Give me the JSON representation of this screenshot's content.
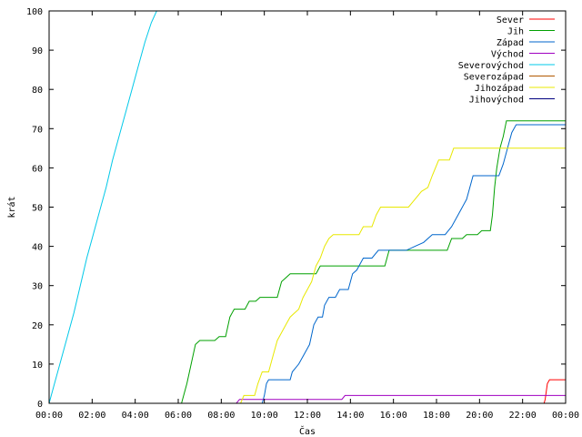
{
  "chart_data": {
    "type": "line",
    "title": "",
    "xlabel": "Čas",
    "ylabel": "krát",
    "xlim": [
      0,
      24
    ],
    "ylim": [
      0,
      100
    ],
    "grid": false,
    "legend_position": "top-right",
    "x_ticks": [
      {
        "value": 0,
        "label": "00:00"
      },
      {
        "value": 2,
        "label": "02:00"
      },
      {
        "value": 4,
        "label": "04:00"
      },
      {
        "value": 6,
        "label": "06:00"
      },
      {
        "value": 8,
        "label": "08:00"
      },
      {
        "value": 10,
        "label": "10:00"
      },
      {
        "value": 12,
        "label": "12:00"
      },
      {
        "value": 14,
        "label": "14:00"
      },
      {
        "value": 16,
        "label": "16:00"
      },
      {
        "value": 18,
        "label": "18:00"
      },
      {
        "value": 20,
        "label": "20:00"
      },
      {
        "value": 22,
        "label": "22:00"
      },
      {
        "value": 24,
        "label": "00:00"
      }
    ],
    "y_ticks": [
      {
        "value": 0,
        "label": "0"
      },
      {
        "value": 10,
        "label": "10"
      },
      {
        "value": 20,
        "label": "20"
      },
      {
        "value": 30,
        "label": "30"
      },
      {
        "value": 40,
        "label": "40"
      },
      {
        "value": 50,
        "label": "50"
      },
      {
        "value": 60,
        "label": "60"
      },
      {
        "value": 70,
        "label": "70"
      },
      {
        "value": 80,
        "label": "80"
      },
      {
        "value": 90,
        "label": "90"
      },
      {
        "value": 100,
        "label": "100"
      }
    ],
    "series": [
      {
        "name": "Sever",
        "color": "#ff0000",
        "points": [
          [
            0,
            0
          ],
          [
            23.0,
            0
          ],
          [
            23.05,
            1
          ],
          [
            23.15,
            5
          ],
          [
            23.25,
            6
          ],
          [
            24,
            6
          ]
        ]
      },
      {
        "name": "Jih",
        "color": "#00a000",
        "points": [
          [
            0,
            0
          ],
          [
            6.15,
            0
          ],
          [
            6.4,
            5
          ],
          [
            6.6,
            10
          ],
          [
            6.8,
            15
          ],
          [
            7.0,
            16
          ],
          [
            7.7,
            16
          ],
          [
            7.9,
            17
          ],
          [
            8.2,
            17
          ],
          [
            8.4,
            22
          ],
          [
            8.6,
            24
          ],
          [
            9.1,
            24
          ],
          [
            9.3,
            26
          ],
          [
            9.6,
            26
          ],
          [
            9.8,
            27
          ],
          [
            10.6,
            27
          ],
          [
            10.8,
            31
          ],
          [
            11.0,
            32
          ],
          [
            11.2,
            33
          ],
          [
            12.4,
            33
          ],
          [
            12.6,
            35
          ],
          [
            15.6,
            35
          ],
          [
            15.8,
            39
          ],
          [
            18.5,
            39
          ],
          [
            18.7,
            42
          ],
          [
            19.2,
            42
          ],
          [
            19.4,
            43
          ],
          [
            19.9,
            43
          ],
          [
            20.1,
            44
          ],
          [
            20.5,
            44
          ],
          [
            20.6,
            48
          ],
          [
            20.7,
            55
          ],
          [
            20.8,
            60
          ],
          [
            20.95,
            65
          ],
          [
            21.1,
            68
          ],
          [
            21.25,
            72
          ],
          [
            24,
            72
          ]
        ]
      },
      {
        "name": "Západ",
        "color": "#0066cc",
        "points": [
          [
            0,
            0
          ],
          [
            9.9,
            0
          ],
          [
            10.0,
            2
          ],
          [
            10.1,
            5
          ],
          [
            10.2,
            6
          ],
          [
            11.2,
            6
          ],
          [
            11.3,
            8
          ],
          [
            11.6,
            10
          ],
          [
            11.8,
            12
          ],
          [
            12.1,
            15
          ],
          [
            12.3,
            20
          ],
          [
            12.5,
            22
          ],
          [
            12.7,
            22
          ],
          [
            12.8,
            25
          ],
          [
            13.0,
            27
          ],
          [
            13.3,
            27
          ],
          [
            13.5,
            29
          ],
          [
            13.9,
            29
          ],
          [
            14.1,
            33
          ],
          [
            14.3,
            34
          ],
          [
            14.6,
            37
          ],
          [
            15.0,
            37
          ],
          [
            15.3,
            39
          ],
          [
            15.7,
            39
          ],
          [
            16.0,
            39
          ],
          [
            16.3,
            39
          ],
          [
            16.6,
            39
          ],
          [
            17.0,
            40
          ],
          [
            17.4,
            41
          ],
          [
            17.8,
            43
          ],
          [
            18.4,
            43
          ],
          [
            18.7,
            45
          ],
          [
            19.0,
            48
          ],
          [
            19.4,
            52
          ],
          [
            19.7,
            58
          ],
          [
            20.9,
            58
          ],
          [
            21.1,
            61
          ],
          [
            21.3,
            65
          ],
          [
            21.5,
            69
          ],
          [
            21.7,
            71
          ],
          [
            24,
            71
          ]
        ]
      },
      {
        "name": "Východ",
        "color": "#a000c0",
        "points": [
          [
            0,
            0
          ],
          [
            8.7,
            0
          ],
          [
            8.85,
            1
          ],
          [
            13.6,
            1
          ],
          [
            13.75,
            2
          ],
          [
            24,
            2
          ]
        ]
      },
      {
        "name": "Severovýchod",
        "color": "#00c8e8",
        "points": [
          [
            0,
            0
          ],
          [
            0.25,
            5
          ],
          [
            0.55,
            11
          ],
          [
            0.85,
            17
          ],
          [
            1.15,
            23
          ],
          [
            1.45,
            30
          ],
          [
            1.75,
            37
          ],
          [
            2.05,
            43
          ],
          [
            2.35,
            49
          ],
          [
            2.65,
            55
          ],
          [
            2.95,
            62
          ],
          [
            3.25,
            68
          ],
          [
            3.55,
            74
          ],
          [
            3.85,
            80
          ],
          [
            4.15,
            86
          ],
          [
            4.45,
            92
          ],
          [
            4.75,
            97
          ],
          [
            5.0,
            100
          ]
        ]
      },
      {
        "name": "Severozápad",
        "color": "#b05800",
        "points": [
          [
            0,
            0
          ],
          [
            24,
            0
          ]
        ]
      },
      {
        "name": "Jihozápad",
        "color": "#e8e800",
        "points": [
          [
            0,
            0
          ],
          [
            8.9,
            0
          ],
          [
            9.05,
            2
          ],
          [
            9.55,
            2
          ],
          [
            9.7,
            5
          ],
          [
            9.9,
            8
          ],
          [
            10.2,
            8
          ],
          [
            10.4,
            12
          ],
          [
            10.6,
            16
          ],
          [
            10.8,
            18
          ],
          [
            11.0,
            20
          ],
          [
            11.2,
            22
          ],
          [
            11.4,
            23
          ],
          [
            11.6,
            24
          ],
          [
            11.8,
            27
          ],
          [
            12.0,
            29
          ],
          [
            12.2,
            31
          ],
          [
            12.4,
            35
          ],
          [
            12.6,
            37
          ],
          [
            12.8,
            40
          ],
          [
            13.0,
            42
          ],
          [
            13.2,
            43
          ],
          [
            14.4,
            43
          ],
          [
            14.6,
            45
          ],
          [
            15.0,
            45
          ],
          [
            15.2,
            48
          ],
          [
            15.4,
            50
          ],
          [
            16.7,
            50
          ],
          [
            17.0,
            52
          ],
          [
            17.3,
            54
          ],
          [
            17.6,
            55
          ],
          [
            17.8,
            58
          ],
          [
            18.1,
            62
          ],
          [
            18.6,
            62
          ],
          [
            18.8,
            65
          ],
          [
            24,
            65
          ]
        ]
      },
      {
        "name": "Jihovýchod",
        "color": "#000080",
        "points": [
          [
            0,
            0
          ],
          [
            24,
            0
          ]
        ]
      }
    ]
  }
}
